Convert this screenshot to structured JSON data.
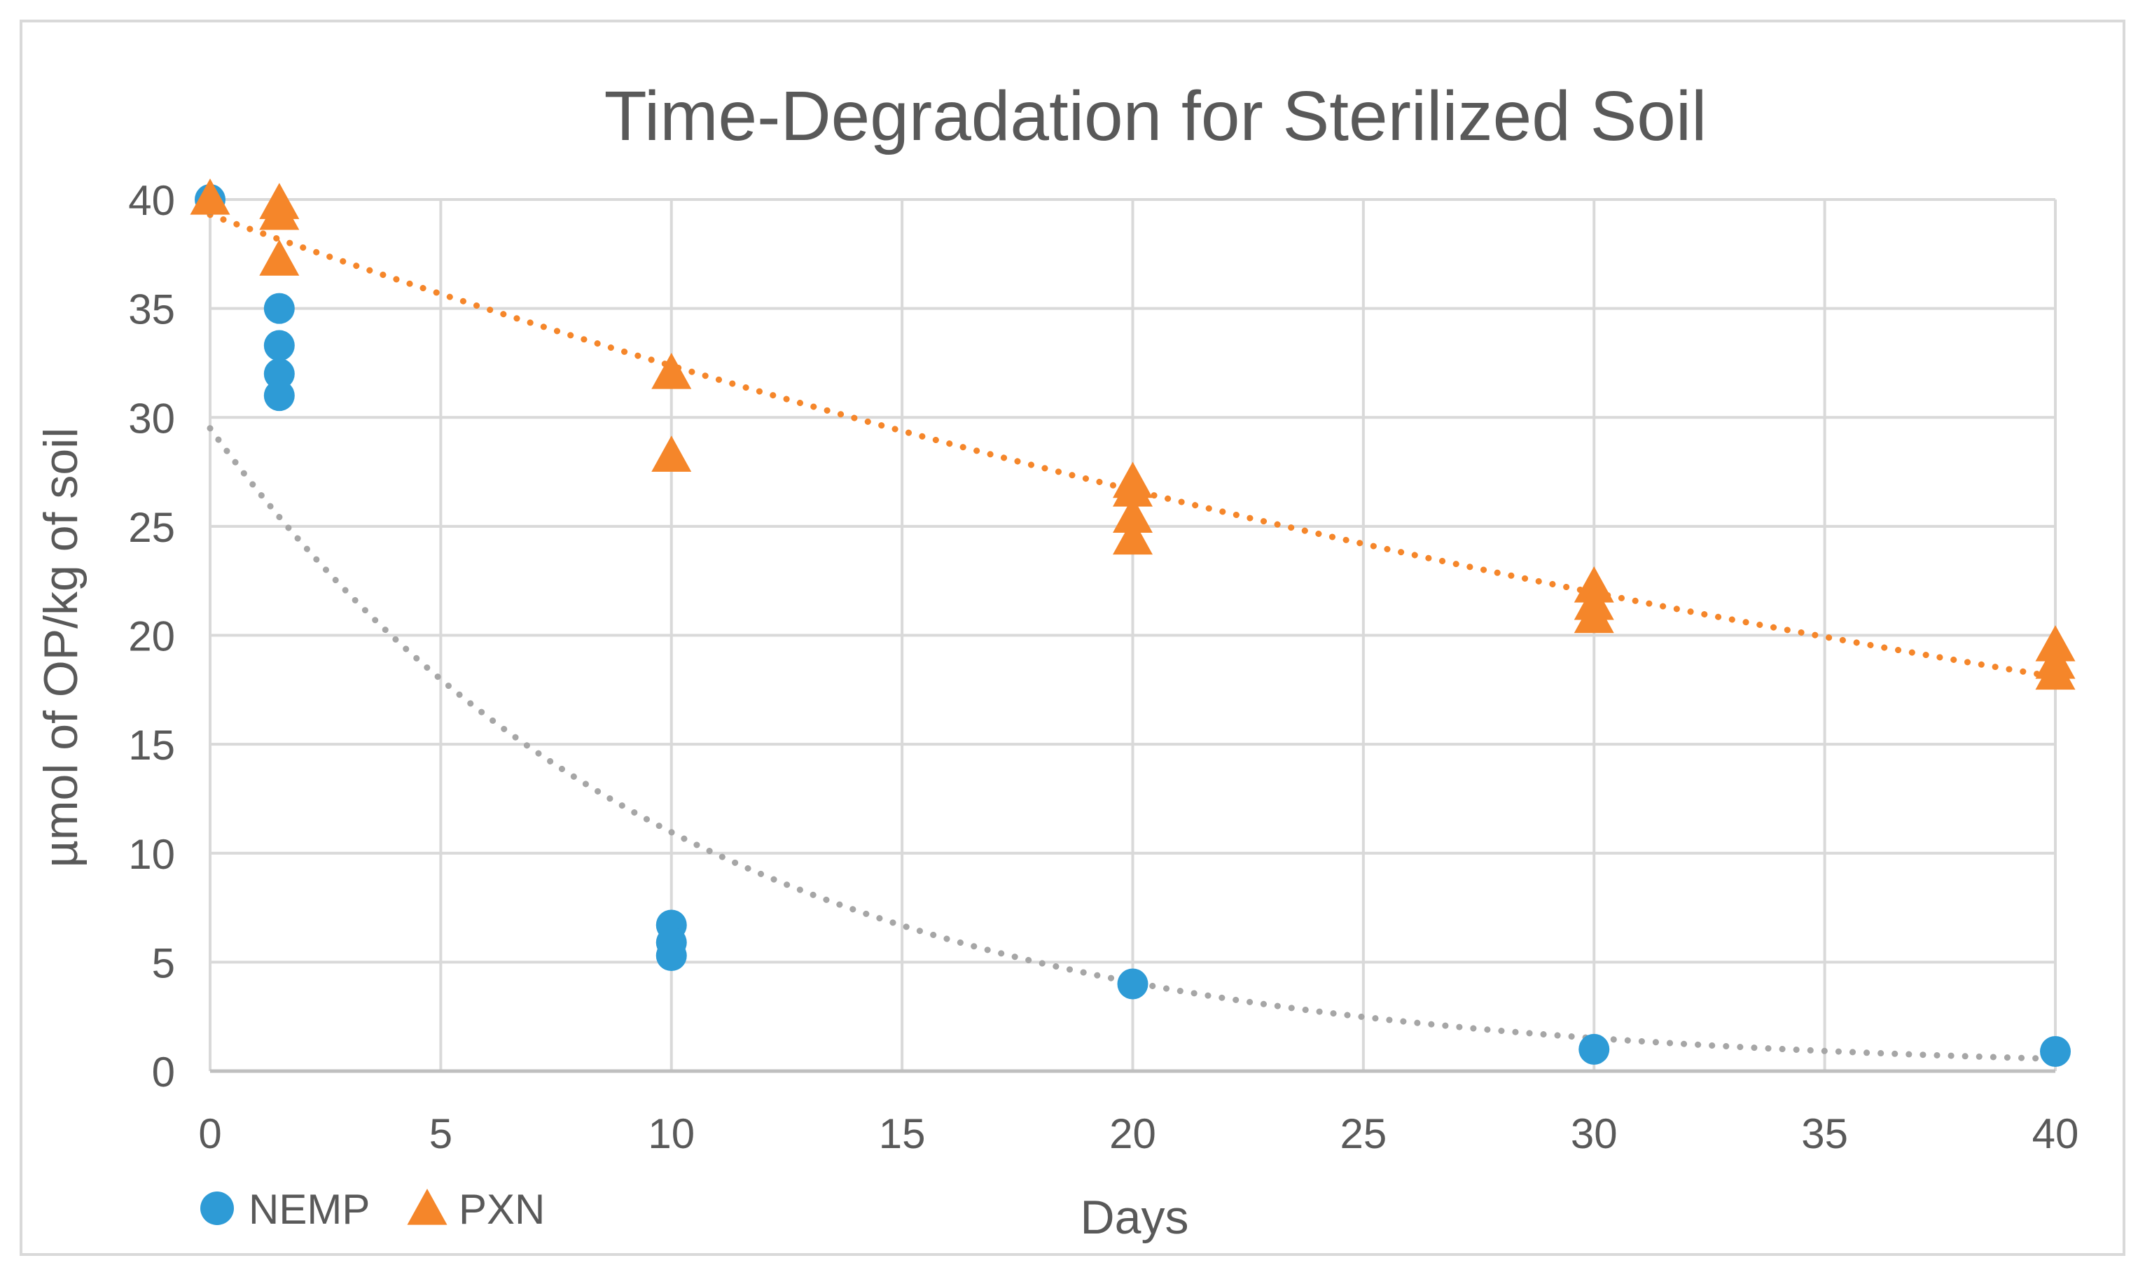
{
  "chart_data": {
    "type": "scatter",
    "title": "Time-Degradation for Sterilized Soil",
    "xlabel": "Days",
    "ylabel": "µmol of OP/kg of soil",
    "xlim": [
      0,
      40
    ],
    "ylim": [
      0,
      40
    ],
    "x_ticks": [
      "0",
      "5",
      "10",
      "15",
      "20",
      "25",
      "30",
      "35",
      "40"
    ],
    "y_ticks": [
      "0",
      "5",
      "10",
      "15",
      "20",
      "25",
      "30",
      "35",
      "40"
    ],
    "grid": true,
    "legend_position": "bottom-left",
    "series": [
      {
        "name": "NEMP",
        "marker": "circle",
        "color": "#2E9BD6",
        "points": [
          [
            0,
            40
          ],
          [
            1.5,
            35
          ],
          [
            1.5,
            33.3
          ],
          [
            1.5,
            32
          ],
          [
            1.5,
            31
          ],
          [
            10,
            6.7
          ],
          [
            10,
            5.9
          ],
          [
            10,
            5.3
          ],
          [
            20,
            4
          ],
          [
            30,
            1
          ],
          [
            40,
            0.9
          ]
        ],
        "trendline": {
          "type": "exponential",
          "a": 29.5,
          "b": -0.099,
          "color": "#A6A6A6",
          "style": "dotted"
        }
      },
      {
        "name": "PXN",
        "marker": "triangle",
        "color": "#F5862A",
        "points": [
          [
            0,
            40
          ],
          [
            1.5,
            39.8
          ],
          [
            1.5,
            39.3
          ],
          [
            1.5,
            37.2
          ],
          [
            10,
            32
          ],
          [
            10,
            28.2
          ],
          [
            20,
            27
          ],
          [
            20,
            26.6
          ],
          [
            20,
            25.4
          ],
          [
            20,
            24.4
          ],
          [
            30,
            22.2
          ],
          [
            30,
            21.4
          ],
          [
            30,
            20.8
          ],
          [
            40,
            19.5
          ],
          [
            40,
            18.7
          ],
          [
            40,
            18.2
          ]
        ],
        "trendline": {
          "type": "exponential",
          "a": 39.3,
          "b": -0.0194,
          "color": "#F5862A",
          "style": "dotted"
        }
      }
    ]
  }
}
